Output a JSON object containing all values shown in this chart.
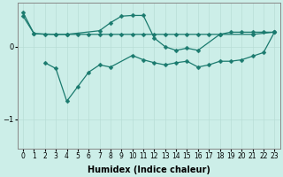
{
  "xlabel": "Humidex (Indice chaleur)",
  "ylabel": "",
  "background_color": "#cceee8",
  "line_color": "#1a7a6e",
  "grid_color": "#b8ddd6",
  "xlim": [
    -0.5,
    23.5
  ],
  "ylim": [
    -1.4,
    0.6
  ],
  "yticks": [
    0,
    -1
  ],
  "series": [
    {
      "x": [
        0,
        1,
        2,
        3,
        4,
        5,
        6,
        7,
        8,
        9,
        10,
        11,
        12,
        13,
        14,
        15,
        16,
        17,
        18,
        19,
        20,
        21,
        22,
        23
      ],
      "y": [
        0.42,
        0.18,
        0.17,
        0.17,
        0.17,
        0.17,
        0.17,
        0.17,
        0.17,
        0.17,
        0.17,
        0.17,
        0.17,
        0.17,
        0.17,
        0.17,
        0.17,
        0.17,
        0.17,
        0.2,
        0.2,
        0.2,
        0.2,
        0.2
      ]
    },
    {
      "x": [
        0,
        1,
        3,
        4,
        7,
        8,
        9,
        10,
        11,
        12,
        13,
        14,
        15,
        16,
        18,
        21,
        23
      ],
      "y": [
        0.47,
        0.18,
        0.17,
        0.17,
        0.22,
        0.33,
        0.42,
        0.43,
        0.43,
        0.12,
        0.0,
        -0.05,
        -0.02,
        -0.05,
        0.17,
        0.17,
        0.2
      ]
    },
    {
      "x": [
        2,
        3,
        4,
        5,
        6,
        7,
        8,
        10,
        11,
        12,
        13,
        14,
        15,
        16,
        17,
        18,
        19,
        20,
        21,
        22,
        23
      ],
      "y": [
        -0.22,
        -0.3,
        -0.75,
        -0.55,
        -0.35,
        -0.25,
        -0.28,
        -0.12,
        -0.18,
        -0.22,
        -0.25,
        -0.22,
        -0.2,
        -0.28,
        -0.25,
        -0.2,
        -0.2,
        -0.18,
        -0.13,
        -0.08,
        0.2
      ]
    }
  ]
}
